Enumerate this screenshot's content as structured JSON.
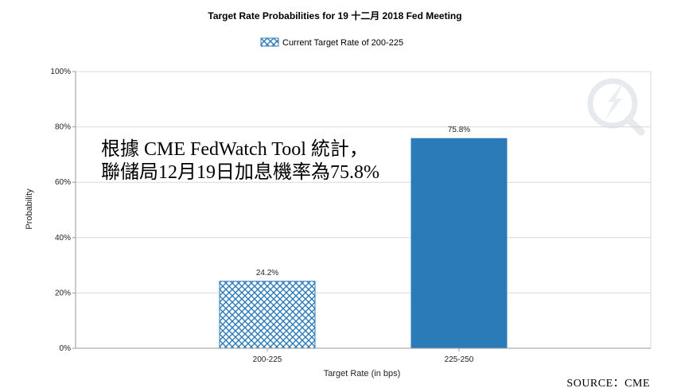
{
  "chart_data": {
    "type": "bar",
    "title": "Target Rate Probabilities for 19 十二月 2018  Fed Meeting",
    "xlabel": "Target Rate (in bps)",
    "ylabel": "Probability",
    "categories": [
      "200-225",
      "225-250"
    ],
    "values": [
      24.2,
      75.8
    ],
    "value_labels": [
      "24.2%",
      "75.8%"
    ],
    "bar_styles": [
      "crosshatch",
      "solid"
    ],
    "colors": {
      "bar": "#2b7bb9",
      "hatch_line": "#2b7bb9",
      "grid": "#d9d9d9",
      "axis": "#9a9a9a"
    },
    "ylim": [
      0,
      100
    ],
    "y_ticks": [
      0,
      20,
      40,
      60,
      80,
      100
    ],
    "y_tick_labels": [
      "0%",
      "20%",
      "40%",
      "60%",
      "80%",
      "100%"
    ],
    "grid": true,
    "legend": {
      "placement": "top-center",
      "entries": [
        {
          "label": "Current Target Rate of 200-225",
          "style": "crosshatch"
        }
      ]
    },
    "annotations": {
      "note_line1": "根據 CME FedWatch Tool 統計，",
      "note_line2": "聯儲局12月19日加息機率為75.8%",
      "source": "SOURCE：CME"
    },
    "watermark_icon": "quiz-logo-icon"
  }
}
